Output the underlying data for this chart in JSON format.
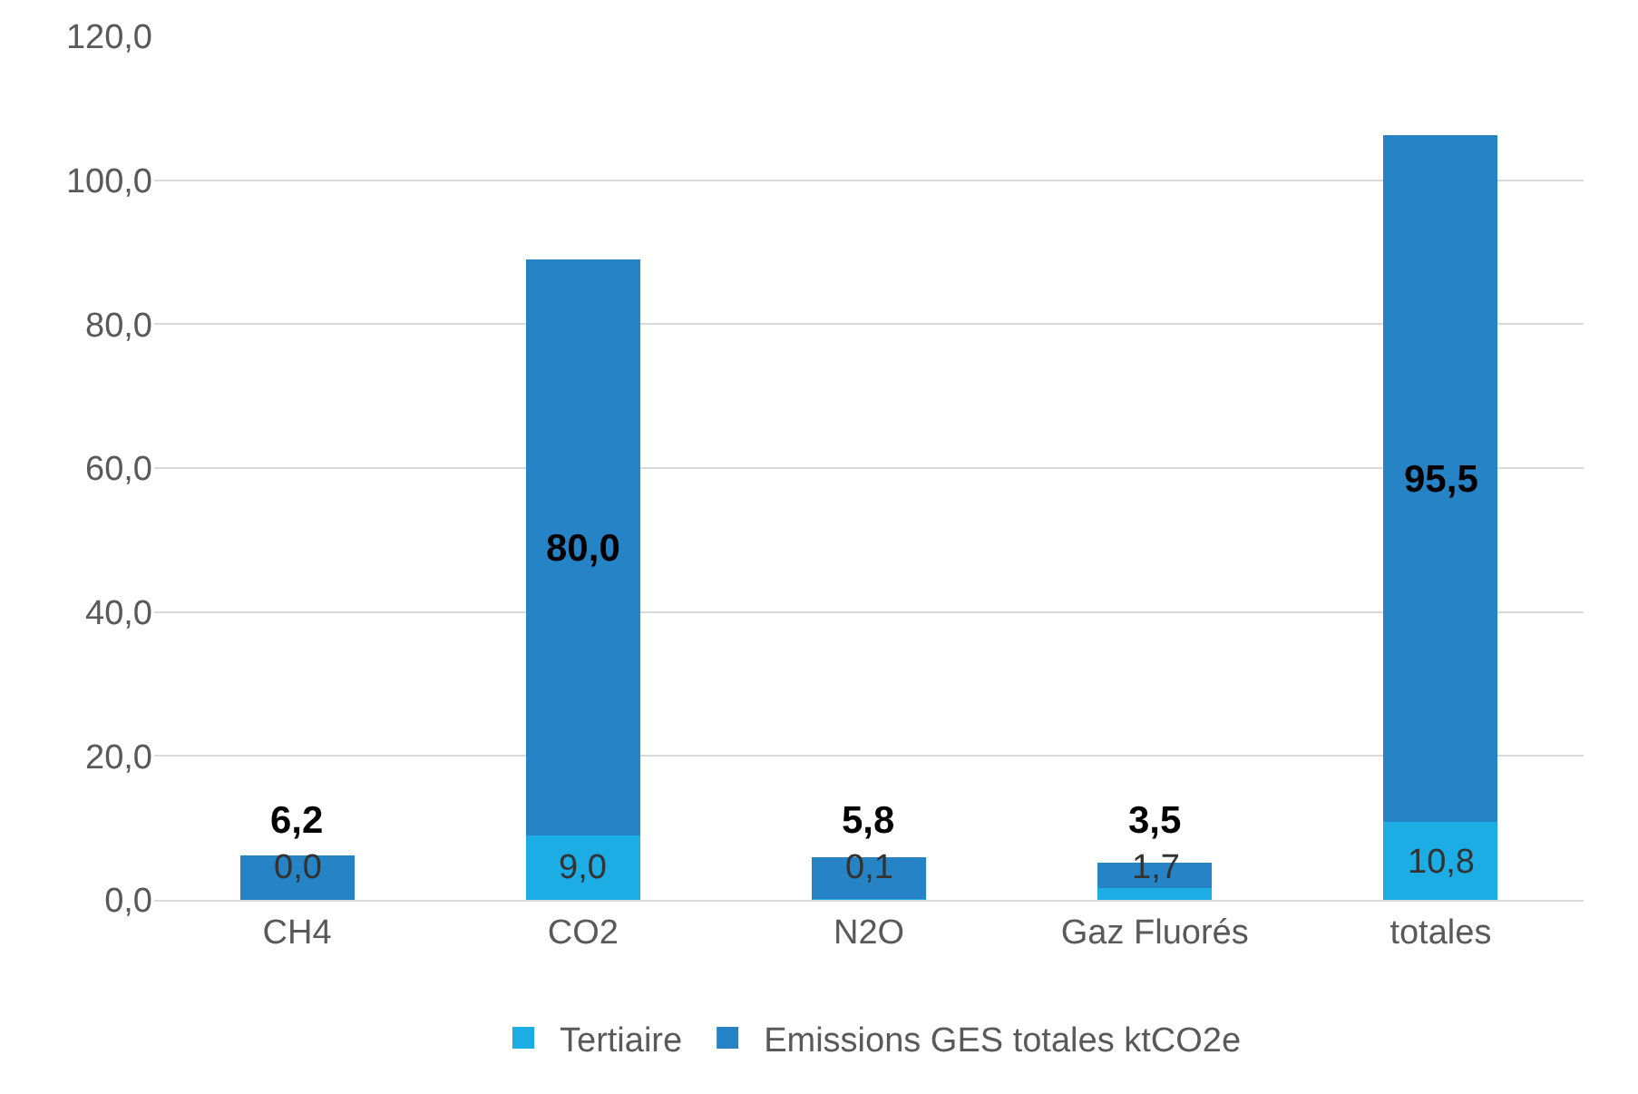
{
  "chart_data": {
    "type": "bar",
    "stacked": true,
    "categories": [
      "CH4",
      "CO2",
      "N2O",
      "Gaz Fluorés",
      "totales"
    ],
    "series": [
      {
        "name": "Tertiaire",
        "color": "#1cade4",
        "values": [
          0.0,
          9.0,
          0.1,
          1.7,
          10.8
        ],
        "value_labels": [
          "0,0",
          "9,0",
          "0,1",
          "1,7",
          "10,8"
        ]
      },
      {
        "name": "Emissions GES totales ktCO2e",
        "color": "#2683c6",
        "values": [
          6.2,
          80.0,
          5.8,
          3.5,
          95.5
        ],
        "value_labels": [
          "6,2",
          "80,0",
          "5,8",
          "3,5",
          "95,5"
        ]
      }
    ],
    "ylim": [
      0,
      120
    ],
    "yticks": [
      {
        "value": 0,
        "label": "0,0"
      },
      {
        "value": 20,
        "label": "20,0"
      },
      {
        "value": 40,
        "label": "40,0"
      },
      {
        "value": 60,
        "label": "60,0"
      },
      {
        "value": 80,
        "label": "80,0"
      },
      {
        "value": 100,
        "label": "100,0"
      },
      {
        "value": 120,
        "label": "120,0"
      }
    ],
    "grid": "y",
    "legend": "bottom"
  }
}
